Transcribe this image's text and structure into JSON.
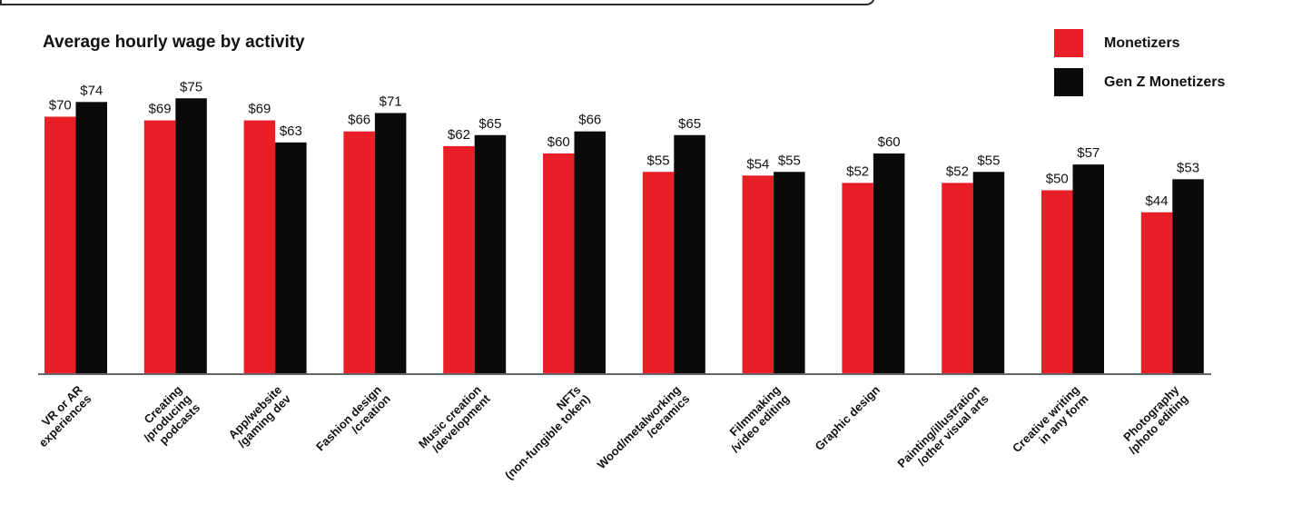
{
  "title": "Average hourly wage by activity",
  "legend": [
    {
      "label": "Monetizers",
      "color": "#e81f27"
    },
    {
      "label": "Gen Z Monetizers",
      "color": "#0a0a0a"
    }
  ],
  "chart_data": {
    "type": "bar",
    "title": "Average hourly wage by activity",
    "xlabel": "",
    "ylabel": "",
    "ylim": [
      0,
      80
    ],
    "grid": false,
    "legend_position": "top-right",
    "categories": [
      [
        "VR or AR",
        "experiences"
      ],
      [
        "Creating",
        "/producing",
        "podcasts"
      ],
      [
        "App/website",
        "/gaming dev"
      ],
      [
        "Fashion design",
        "/creation"
      ],
      [
        "Music creation",
        "/development"
      ],
      [
        "NFTs",
        "(non-fungible token)"
      ],
      [
        "Wood/metalworking",
        "/ceramics"
      ],
      [
        "Filmmaking",
        "/video editing"
      ],
      [
        "Graphic design"
      ],
      [
        "Painting/illustration",
        "/other visual arts"
      ],
      [
        "Creative writing",
        "in any form"
      ],
      [
        "Photography",
        "/photo editing"
      ]
    ],
    "series": [
      {
        "name": "Monetizers",
        "color": "#e81f27",
        "values": [
          70,
          69,
          69,
          66,
          62,
          60,
          55,
          54,
          52,
          52,
          50,
          44
        ]
      },
      {
        "name": "Gen Z Monetizers",
        "color": "#0a0a0a",
        "values": [
          74,
          75,
          63,
          71,
          65,
          66,
          65,
          55,
          60,
          55,
          57,
          53
        ]
      }
    ],
    "value_prefix": "$"
  }
}
